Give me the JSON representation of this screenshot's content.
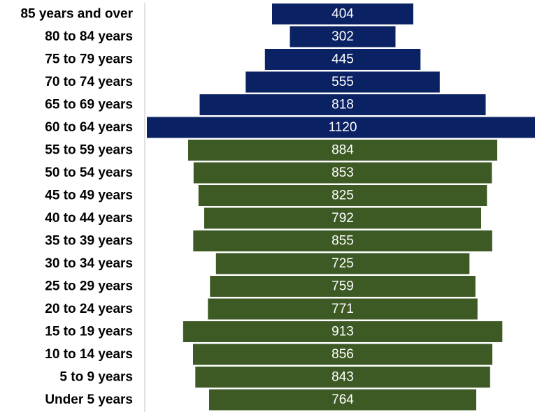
{
  "chart_data": {
    "type": "bar",
    "orientation": "horizontal-centered",
    "title": "",
    "xlabel": "",
    "ylabel": "",
    "categories": [
      "85 years and over",
      "80 to 84 years",
      "75 to 79 years",
      "70 to 74 years",
      "65 to 69 years",
      "60 to 64 years",
      "55 to 59 years",
      "50 to 54 years",
      "45 to 49 years",
      "40 to 44 years",
      "35 to 39 years",
      "30 to 34 years",
      "25 to 29 years",
      "20 to 24 years",
      "15 to 19 years",
      "10 to 14 years",
      "5 to 9 years",
      "Under 5 years"
    ],
    "values": [
      404,
      302,
      445,
      555,
      818,
      1120,
      884,
      853,
      825,
      792,
      855,
      725,
      759,
      771,
      913,
      856,
      843,
      764
    ],
    "value_labels": [
      "404",
      "302",
      "445",
      "555",
      "818",
      "1120",
      "884",
      "853",
      "825",
      "792",
      "855",
      "725",
      "759",
      "771",
      "913",
      "856",
      "843",
      "764"
    ],
    "bar_colors": [
      "#0a2164",
      "#0a2164",
      "#0a2164",
      "#0a2164",
      "#0a2164",
      "#0a2164",
      "#3d5a24",
      "#3d5a24",
      "#3d5a24",
      "#3d5a24",
      "#3d5a24",
      "#3d5a24",
      "#3d5a24",
      "#3d5a24",
      "#3d5a24",
      "#3d5a24",
      "#3d5a24",
      "#3d5a24"
    ],
    "value_label_color": "#ffffff",
    "axis_line_color": "#d9d9d9",
    "grid": false,
    "legend": "none"
  }
}
